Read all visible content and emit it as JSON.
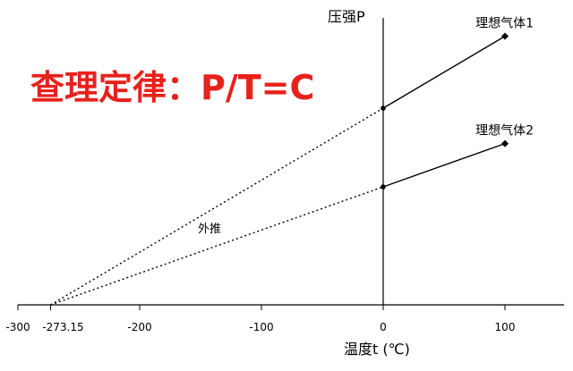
{
  "chart_data": {
    "type": "line",
    "title": "查理定律：P/T=C",
    "xlabel": "温度t (℃)",
    "ylabel": "压强P",
    "xlim": [
      -300,
      150
    ],
    "x_ticks": [
      -300,
      -200,
      -100,
      0,
      100
    ],
    "x_tick_labels": [
      "-300",
      "-200",
      "-100",
      "0",
      "100"
    ],
    "special_tick": {
      "x": -273.15,
      "label": "-273.15"
    },
    "series": [
      {
        "name": "理想气体1",
        "x": [
          0,
          100
        ],
        "y": [
          1.0,
          1.366
        ]
      },
      {
        "name": "理想气体2",
        "x": [
          0,
          100
        ],
        "y": [
          0.6,
          0.82
        ]
      }
    ],
    "extrapolation": {
      "label": "外推",
      "from_x": -273.15,
      "to_x": 0
    },
    "colors": {
      "title": "#e8211b",
      "lines": "#000000",
      "axes": "#000000"
    }
  }
}
